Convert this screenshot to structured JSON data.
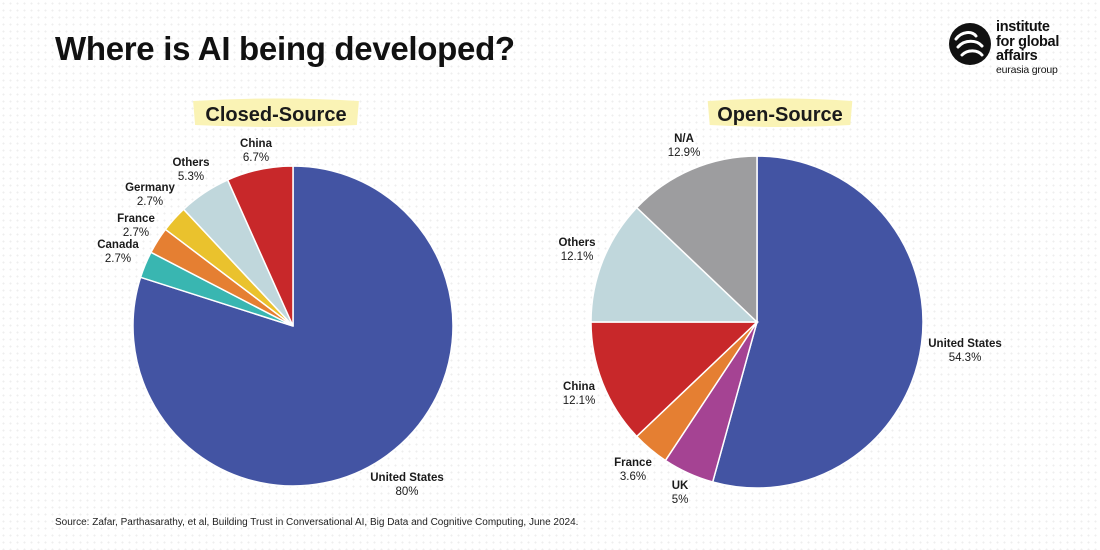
{
  "title": "Where is AI being developed?",
  "logo": {
    "line1": "institute",
    "line2": "for global",
    "line3": "affairs",
    "line4": "eurasia group",
    "icon": "swirl-logo-icon"
  },
  "source": "Source: Zafar, Parthasarathy, et al, Building Trust in Conversational AI, Big Data and Cognitive Computing, June 2024.",
  "colors": {
    "united_states": "#4354a3",
    "canada": "#39b6b1",
    "france": "#e57f32",
    "germany": "#eac22d",
    "others": "#c0d7dc",
    "china": "#c8282a",
    "uk": "#a54393",
    "na": "#9d9d9f",
    "highlight": "#faf3b5"
  },
  "chart_data": [
    {
      "type": "pie",
      "title": "Closed-Source",
      "legend": "none",
      "slices": [
        {
          "label": "United States",
          "value": 80,
          "display": "80%",
          "color": "#4354a3"
        },
        {
          "label": "Canada",
          "value": 2.7,
          "display": "2.7%",
          "color": "#39b6b1"
        },
        {
          "label": "France",
          "value": 2.7,
          "display": "2.7%",
          "color": "#e57f32"
        },
        {
          "label": "Germany",
          "value": 2.7,
          "display": "2.7%",
          "color": "#eac22d"
        },
        {
          "label": "Others",
          "value": 5.3,
          "display": "5.3%",
          "color": "#c0d7dc"
        },
        {
          "label": "China",
          "value": 6.7,
          "display": "6.7%",
          "color": "#c8282a"
        }
      ]
    },
    {
      "type": "pie",
      "title": "Open-Source",
      "legend": "none",
      "slices": [
        {
          "label": "United States",
          "value": 54.3,
          "display": "54.3%",
          "color": "#4354a3"
        },
        {
          "label": "UK",
          "value": 5,
          "display": "5%",
          "color": "#a54393"
        },
        {
          "label": "France",
          "value": 3.6,
          "display": "3.6%",
          "color": "#e57f32"
        },
        {
          "label": "China",
          "value": 12.1,
          "display": "12.1%",
          "color": "#c8282a"
        },
        {
          "label": "Others",
          "value": 12.1,
          "display": "12.1%",
          "color": "#c0d7dc"
        },
        {
          "label": "N/A",
          "value": 12.9,
          "display": "12.9%",
          "color": "#9d9d9f"
        }
      ]
    }
  ]
}
